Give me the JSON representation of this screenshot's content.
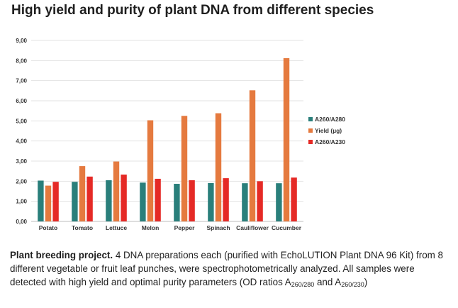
{
  "title": "High yield and purity of plant DNA from different species",
  "chart_data": {
    "type": "bar",
    "categories": [
      "Potato",
      "Tomato",
      "Lettuce",
      "Melon",
      "Pepper",
      "Spinach",
      "Cauliflower",
      "Cucumber"
    ],
    "series": [
      {
        "name": "A260/A280",
        "color": "#2a7f7b",
        "values": [
          2.03,
          1.97,
          2.05,
          1.93,
          1.87,
          1.91,
          1.9,
          1.9
        ]
      },
      {
        "name": "Yield (µg)",
        "color": "#e57a3f",
        "values": [
          1.78,
          2.75,
          2.98,
          5.03,
          5.25,
          5.38,
          6.52,
          8.12
        ]
      },
      {
        "name": "A260/A230",
        "color": "#e52a26",
        "values": [
          1.97,
          2.23,
          2.33,
          2.12,
          2.05,
          2.15,
          2.0,
          2.18
        ]
      }
    ],
    "y_ticks": [
      "0,00",
      "1,00",
      "2,00",
      "3,00",
      "4,00",
      "5,00",
      "6,00",
      "7,00",
      "8,00",
      "9,00"
    ],
    "ylim": [
      0,
      9
    ],
    "xlabel": "",
    "ylabel": "",
    "legend_position": "right"
  },
  "caption": {
    "lead": "Plant breeding project.",
    "text_main": " 4 DNA preparations each (purified with EchoLUTION Plant DNA 96 Kit) from 8 different vegetable or fruit leaf punches, were spectrophotometrically analyzed. All samples were detected with high yield and optimal purity parameters (OD ratios A",
    "sub1": "260/280",
    "and": " and A",
    "sub2": "260/230",
    "end": ")"
  }
}
